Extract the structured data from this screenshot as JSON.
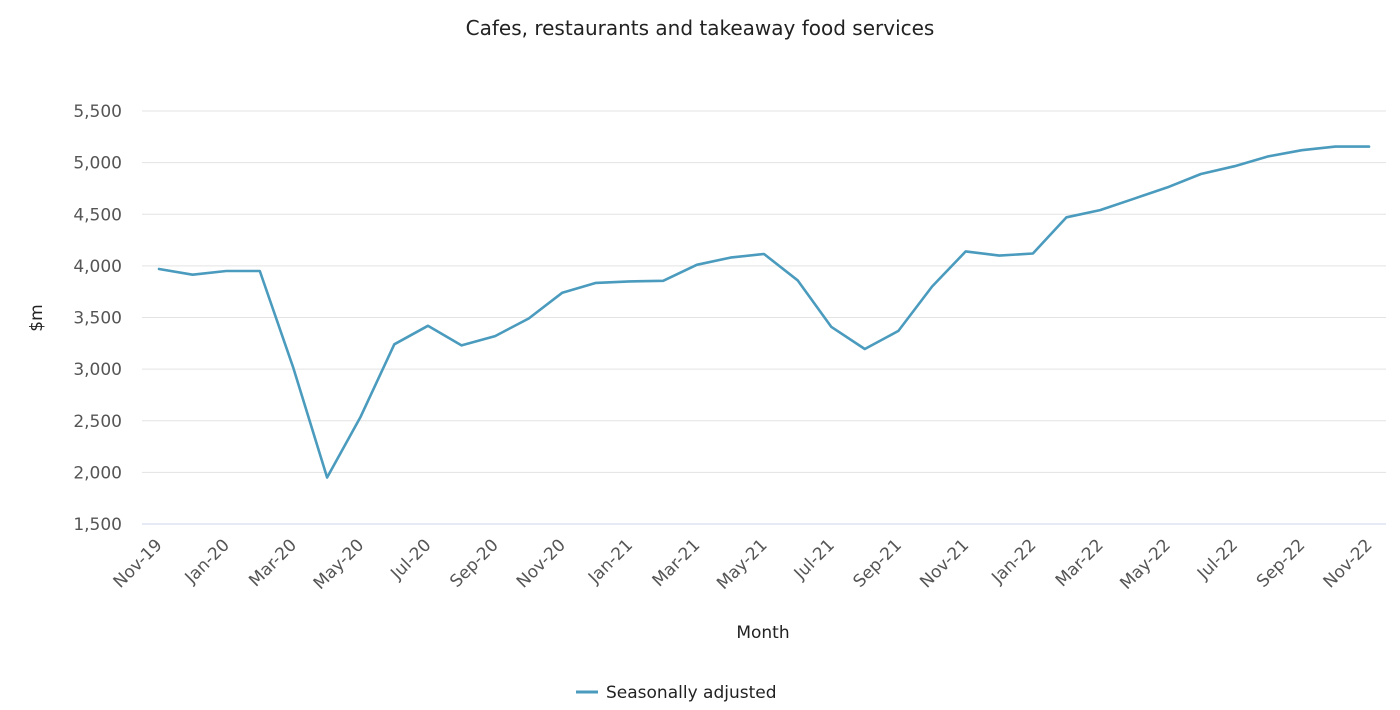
{
  "chart_data": {
    "type": "line",
    "title": "Cafes, restaurants and takeaway food services",
    "xlabel": "Month",
    "ylabel": "$m",
    "ylim": [
      1500,
      5500
    ],
    "yticks": [
      "1,500",
      "2,000",
      "2,500",
      "3,000",
      "3,500",
      "4,000",
      "4,500",
      "5,000",
      "5,500"
    ],
    "ytick_values": [
      1500,
      2000,
      2500,
      3000,
      3500,
      4000,
      4500,
      5000,
      5500
    ],
    "x": [
      "Nov-19",
      "Dec-19",
      "Jan-20",
      "Feb-20",
      "Mar-20",
      "Apr-20",
      "May-20",
      "Jun-20",
      "Jul-20",
      "Aug-20",
      "Sep-20",
      "Oct-20",
      "Nov-20",
      "Dec-20",
      "Jan-21",
      "Feb-21",
      "Mar-21",
      "Apr-21",
      "May-21",
      "Jun-21",
      "Jul-21",
      "Aug-21",
      "Sep-21",
      "Oct-21",
      "Nov-21",
      "Dec-21",
      "Jan-22",
      "Feb-22",
      "Mar-22",
      "Apr-22",
      "May-22",
      "Jun-22",
      "Jul-22",
      "Aug-22",
      "Sep-22",
      "Oct-22",
      "Nov-22"
    ],
    "xtick_labels": [
      "Nov-19",
      "Jan-20",
      "Mar-20",
      "May-20",
      "Jul-20",
      "Sep-20",
      "Nov-20",
      "Jan-21",
      "Mar-21",
      "May-21",
      "Jul-21",
      "Sep-21",
      "Nov-21",
      "Jan-22",
      "Mar-22",
      "May-22",
      "Jul-22",
      "Sep-22",
      "Nov-22"
    ],
    "grid": true,
    "legend_position": "bottom-center",
    "series": [
      {
        "name": "Seasonally adjusted",
        "color": "#4a9bbd",
        "values": [
          3970,
          3915,
          3950,
          3950,
          3010,
          1950,
          2540,
          3240,
          3420,
          3230,
          3320,
          3490,
          3740,
          3835,
          3850,
          3855,
          4010,
          4080,
          4115,
          3860,
          3410,
          3195,
          3370,
          3800,
          4140,
          4100,
          4120,
          4470,
          4540,
          4650,
          4760,
          4890,
          4965,
          5060,
          5120,
          5155,
          5155
        ]
      }
    ]
  }
}
